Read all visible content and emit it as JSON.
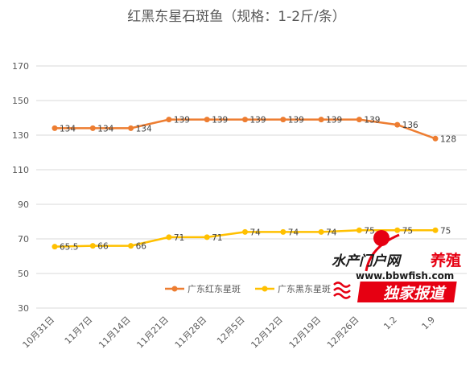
{
  "chart_data": {
    "type": "line",
    "title": "红黑东星石斑鱼（规格：1-2斤/条）",
    "categories": [
      "10月31日",
      "11月7日",
      "11月14日",
      "11月21日",
      "11月28日",
      "12月5日",
      "12月12日",
      "12月19日",
      "12月26日",
      "1.2",
      "1.9"
    ],
    "series": [
      {
        "name": "广东红东星斑",
        "color": "#ED7D31",
        "values": [
          134,
          134,
          134,
          139,
          139,
          139,
          139,
          139,
          139,
          136,
          128
        ],
        "labels": [
          "134",
          "134",
          "134",
          "139",
          "139",
          "139",
          "139",
          "139",
          "139",
          "136",
          "128"
        ]
      },
      {
        "name": "广东黑东星斑",
        "color": "#FFC000",
        "values": [
          65.5,
          66,
          66,
          71,
          71,
          74,
          74,
          74,
          75,
          75,
          75
        ],
        "labels": [
          "65.5",
          "66",
          "66",
          "71",
          "71",
          "74",
          "74",
          "74",
          "75",
          "75",
          "75"
        ]
      }
    ],
    "ylim": [
      30,
      170
    ],
    "yticks": [
      30,
      50,
      70,
      90,
      110,
      130,
      150,
      170
    ],
    "grid": true,
    "legend": "bottom-center"
  },
  "watermark": {
    "site_name": "水产门户网",
    "tag": "养殖",
    "url": "www.bbwfish.com",
    "slogan": "独家报道",
    "accent_red": "#E60012"
  }
}
